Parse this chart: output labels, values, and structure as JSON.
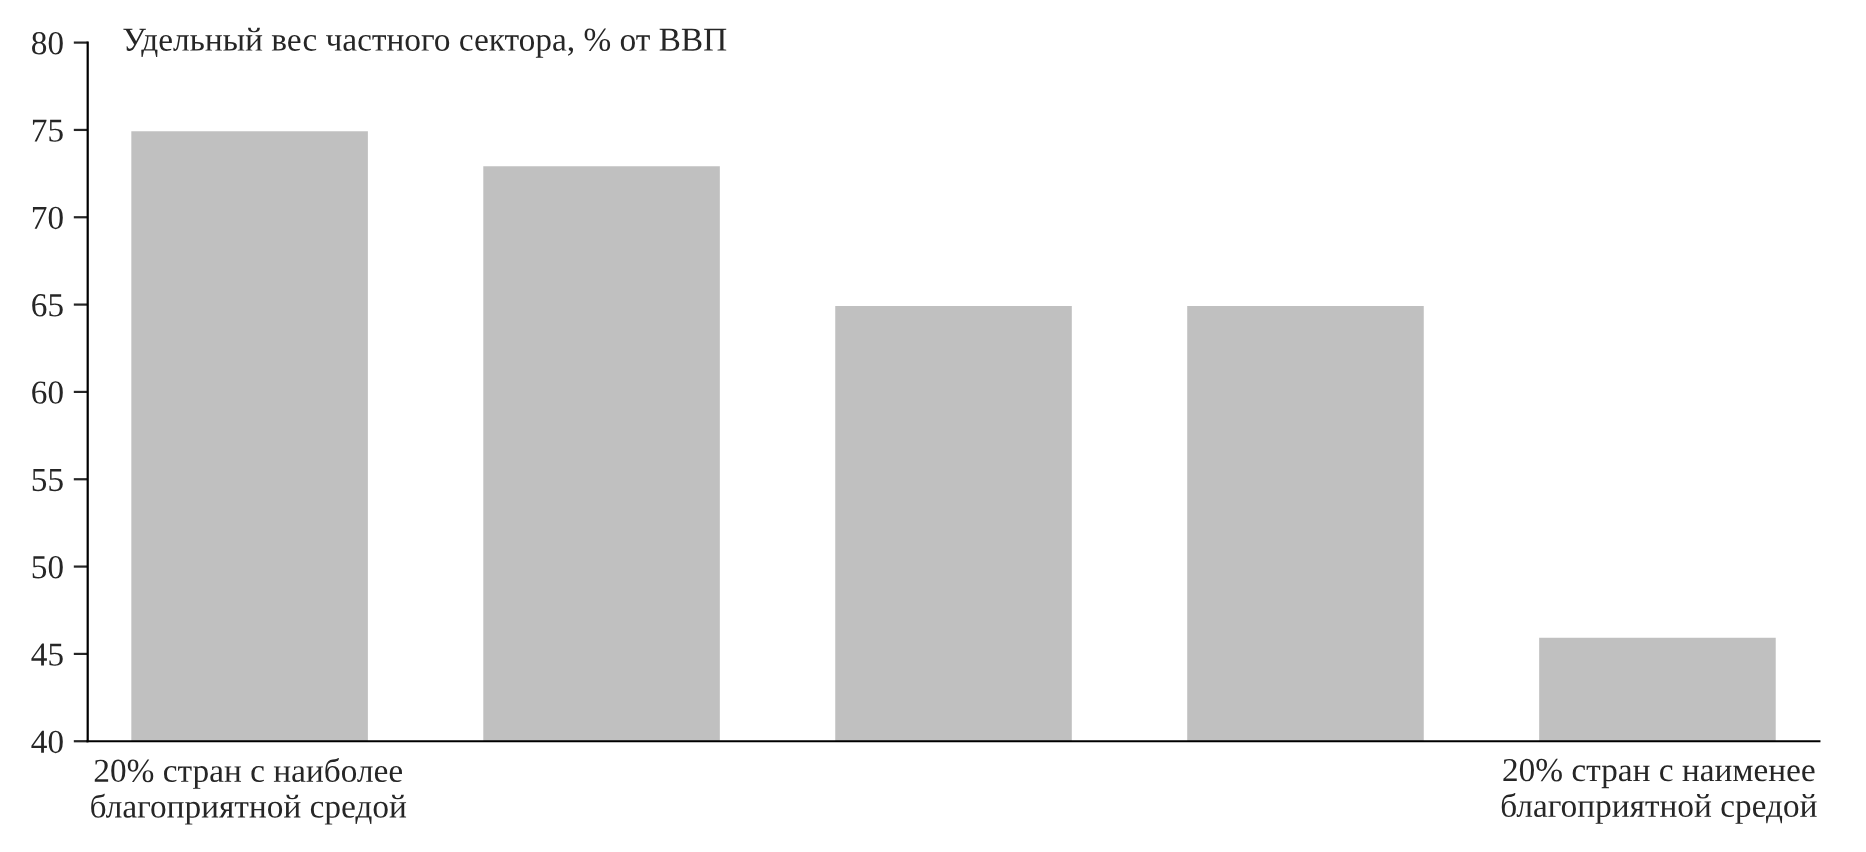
{
  "chart_data": {
    "type": "bar",
    "title": "Удельный вес частного сектора, % от ВВП",
    "categories": [
      "20% стран с наиболее\nблагоприятной средой",
      null,
      null,
      null,
      "20% стран с наименее\nблагоприятной средой"
    ],
    "values": [
      75,
      73,
      65,
      65,
      46
    ],
    "color": "#c0c0c0",
    "ylim": [
      40,
      80
    ],
    "yticks": [
      40,
      45,
      50,
      55,
      60,
      65,
      70,
      75,
      80
    ],
    "grid": false
  }
}
